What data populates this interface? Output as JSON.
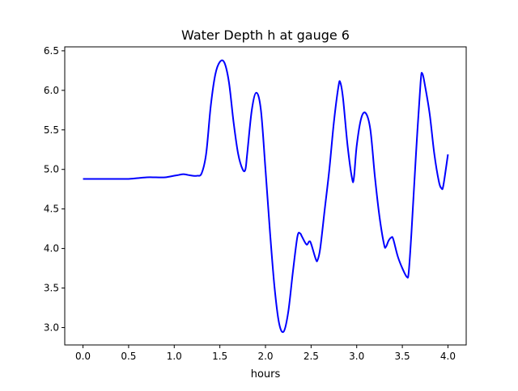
{
  "chart_data": {
    "type": "line",
    "title": "Water Depth h at gauge 6",
    "xlabel": "hours",
    "ylabel": "",
    "xlim": [
      -0.2,
      4.2
    ],
    "ylim": [
      2.78,
      6.55
    ],
    "xticks": [
      0.0,
      0.5,
      1.0,
      1.5,
      2.0,
      2.5,
      3.0,
      3.5,
      4.0
    ],
    "xtick_labels": [
      "0.0",
      "0.5",
      "1.0",
      "1.5",
      "2.0",
      "2.5",
      "3.0",
      "3.5",
      "4.0"
    ],
    "yticks": [
      3.0,
      3.5,
      4.0,
      4.5,
      5.0,
      5.5,
      6.0,
      6.5
    ],
    "ytick_labels": [
      "3.0",
      "3.5",
      "4.0",
      "4.5",
      "5.0",
      "5.5",
      "6.0",
      "6.5"
    ],
    "grid": false,
    "series": [
      {
        "color": "#0000ff",
        "x": [
          0.0,
          0.2,
          0.4,
          0.5,
          0.6,
          0.7,
          0.8,
          0.9,
          1.0,
          1.05,
          1.1,
          1.15,
          1.2,
          1.25,
          1.3,
          1.35,
          1.4,
          1.45,
          1.5,
          1.55,
          1.6,
          1.65,
          1.7,
          1.75,
          1.78,
          1.8,
          1.85,
          1.9,
          1.95,
          2.0,
          2.05,
          2.1,
          2.15,
          2.2,
          2.25,
          2.3,
          2.35,
          2.38,
          2.4,
          2.45,
          2.48,
          2.5,
          2.55,
          2.57,
          2.6,
          2.65,
          2.7,
          2.75,
          2.8,
          2.82,
          2.85,
          2.9,
          2.95,
          2.97,
          3.0,
          3.05,
          3.1,
          3.15,
          3.2,
          3.25,
          3.3,
          3.32,
          3.35,
          3.38,
          3.4,
          3.45,
          3.5,
          3.55,
          3.57,
          3.6,
          3.65,
          3.7,
          3.72,
          3.75,
          3.8,
          3.85,
          3.9,
          3.93,
          3.95,
          4.0
        ],
        "y": [
          4.88,
          4.88,
          4.88,
          4.88,
          4.89,
          4.9,
          4.9,
          4.9,
          4.92,
          4.93,
          4.94,
          4.93,
          4.92,
          4.92,
          4.95,
          5.2,
          5.8,
          6.2,
          6.36,
          6.35,
          6.1,
          5.6,
          5.2,
          5.0,
          5.0,
          5.2,
          5.75,
          5.97,
          5.75,
          5.0,
          4.2,
          3.5,
          3.05,
          2.95,
          3.2,
          3.7,
          4.15,
          4.19,
          4.15,
          4.05,
          4.09,
          4.06,
          3.87,
          3.85,
          4.0,
          4.5,
          5.0,
          5.6,
          6.05,
          6.1,
          5.9,
          5.3,
          4.88,
          4.9,
          5.3,
          5.65,
          5.71,
          5.5,
          4.9,
          4.4,
          4.05,
          4.02,
          4.1,
          4.14,
          4.12,
          3.9,
          3.75,
          3.64,
          3.7,
          4.2,
          5.2,
          6.1,
          6.21,
          6.05,
          5.7,
          5.2,
          4.85,
          4.76,
          4.8,
          5.19
        ]
      }
    ]
  }
}
